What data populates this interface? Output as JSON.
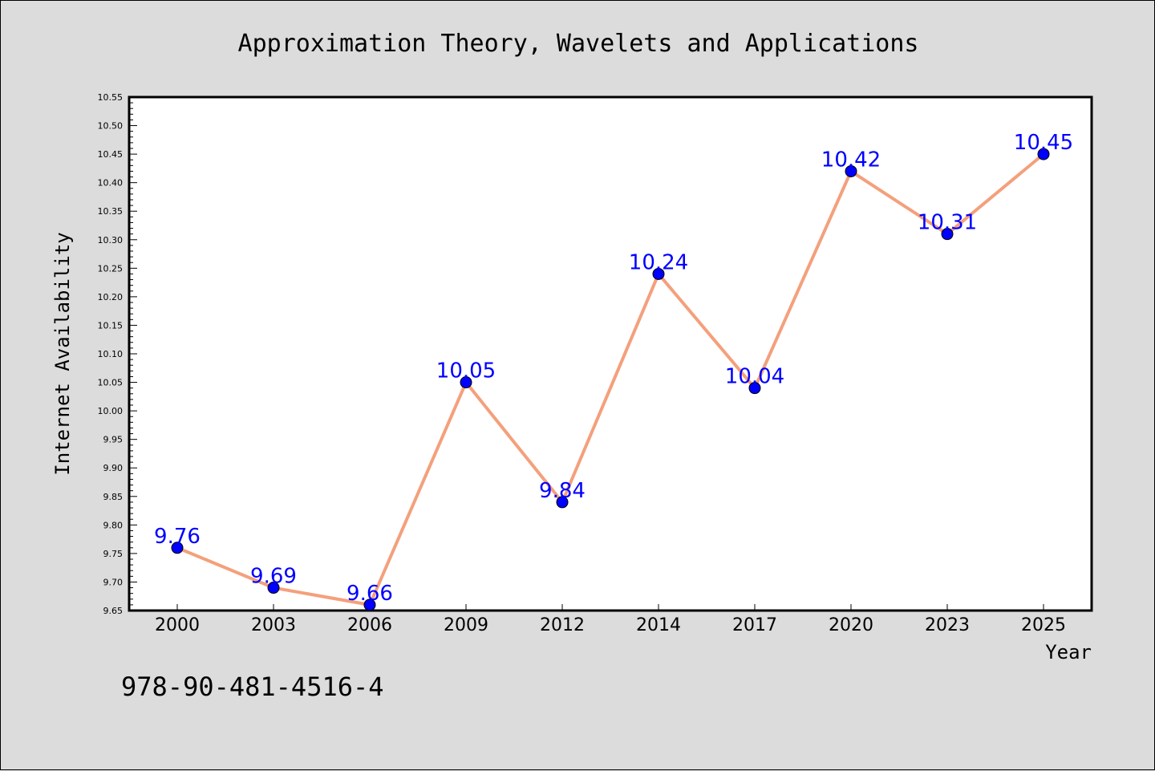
{
  "chart_data": {
    "type": "line",
    "title": "Approximation Theory, Wavelets and Applications",
    "xlabel": "Year",
    "ylabel": "Internet Availability",
    "categories": [
      "2000",
      "2003",
      "2006",
      "2009",
      "2012",
      "2014",
      "2017",
      "2020",
      "2023",
      "2025"
    ],
    "series": [
      {
        "values": [
          9.76,
          9.69,
          9.66,
          10.05,
          9.84,
          10.24,
          10.04,
          10.42,
          10.31,
          10.45
        ],
        "labels": [
          "9.76",
          "9.69",
          "9.66",
          "10.05",
          "9.84",
          "10.24",
          "10.04",
          "10.42",
          "10.31",
          "10.45"
        ]
      }
    ],
    "ylim": [
      9.65,
      10.55
    ],
    "yticks": [
      "9.65",
      "9.70",
      "9.75",
      "9.80",
      "9.85",
      "9.90",
      "9.95",
      "10.00",
      "10.05",
      "10.10",
      "10.15",
      "10.20",
      "10.25",
      "10.30",
      "10.35",
      "10.40",
      "10.45",
      "10.50",
      "10.55"
    ],
    "grid": false,
    "colors": {
      "line": "#f4a07c",
      "marker": "#0000ff",
      "data_label": "#0000ff",
      "background": "#dcdcdc",
      "plot_background": "#ffffff"
    }
  },
  "footer": {
    "isbn": "978-90-481-4516-4"
  }
}
